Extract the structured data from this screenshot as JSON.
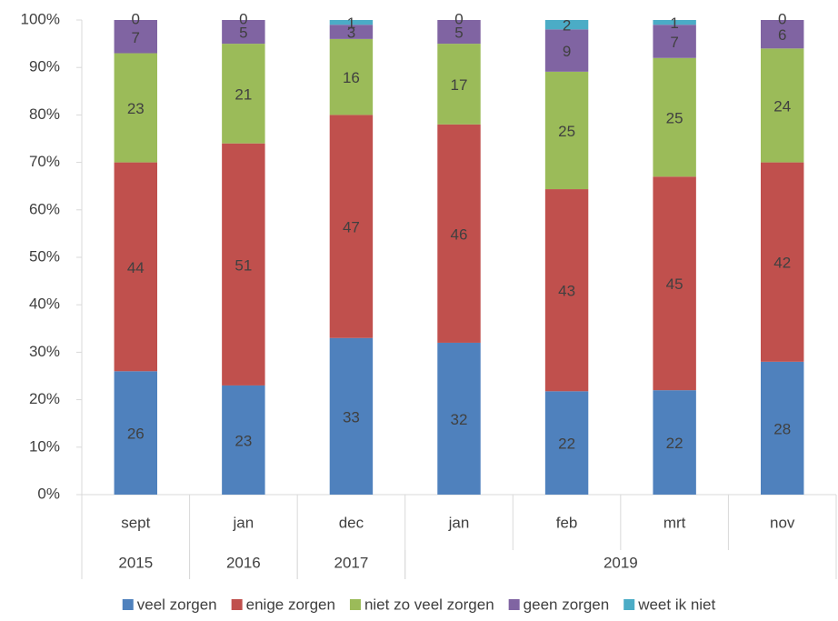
{
  "chart_data": {
    "type": "bar",
    "stacking": "percent",
    "categories": [
      "sept",
      "jan",
      "dec",
      "jan",
      "feb",
      "mrt",
      "nov"
    ],
    "category_groups": [
      {
        "label": "2015",
        "count": 1
      },
      {
        "label": "2016",
        "count": 1
      },
      {
        "label": "2017",
        "count": 1
      },
      {
        "label": "2019",
        "count": 4
      }
    ],
    "series": [
      {
        "name": "veel zorgen",
        "color": "#4f81bd",
        "values": [
          26,
          23,
          33,
          32,
          22,
          22,
          28
        ]
      },
      {
        "name": "enige zorgen",
        "color": "#c0504d",
        "values": [
          44,
          51,
          47,
          46,
          43,
          45,
          42
        ]
      },
      {
        "name": "niet zo veel zorgen",
        "color": "#9bbb59",
        "values": [
          23,
          21,
          16,
          17,
          25,
          25,
          24
        ]
      },
      {
        "name": "geen zorgen",
        "color": "#8064a2",
        "values": [
          7,
          5,
          3,
          5,
          9,
          7,
          6
        ]
      },
      {
        "name": "weet ik niet",
        "color": "#4bacc6",
        "values": [
          0,
          0,
          1,
          0,
          2,
          1,
          0
        ]
      }
    ],
    "ylim": [
      0,
      100
    ],
    "yticks": [
      {
        "value": 0,
        "label": "0%"
      },
      {
        "value": 10,
        "label": "10%"
      },
      {
        "value": 20,
        "label": "20%"
      },
      {
        "value": 30,
        "label": "30%"
      },
      {
        "value": 40,
        "label": "40%"
      },
      {
        "value": 50,
        "label": "50%"
      },
      {
        "value": 60,
        "label": "60%"
      },
      {
        "value": 70,
        "label": "70%"
      },
      {
        "value": 80,
        "label": "80%"
      },
      {
        "value": 90,
        "label": "90%"
      },
      {
        "value": 100,
        "label": "100%"
      }
    ],
    "grid": false,
    "legend": "bottom"
  }
}
